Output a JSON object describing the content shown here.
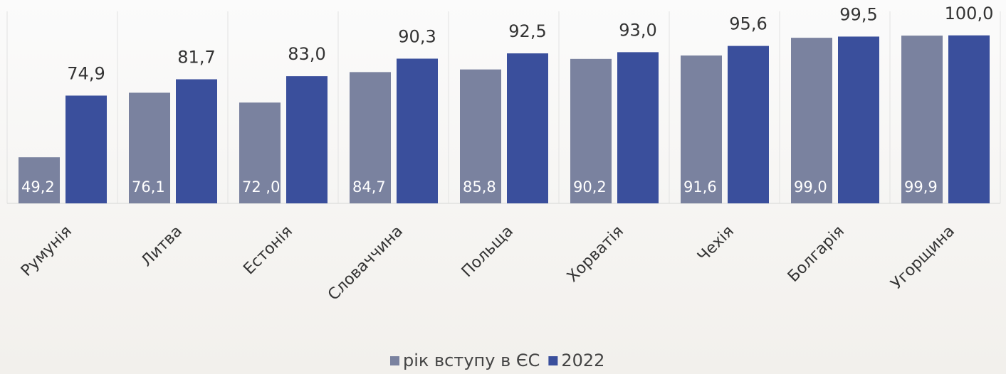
{
  "chart_data": {
    "type": "bar",
    "categories": [
      "Румунія",
      "Литва",
      "Естонія",
      "Словаччина",
      "Польща",
      "Хорватія",
      "Чехія",
      "Болгарія",
      "Угорщина"
    ],
    "series": [
      {
        "name": "рік вступу в ЄС",
        "color": "#7a829f",
        "values": [
          49.2,
          76.1,
          72.0,
          84.7,
          85.8,
          90.2,
          91.6,
          99.0,
          99.9
        ],
        "value_labels": [
          "49,2",
          "76,1",
          "72 ,0",
          "84,7",
          "85,8",
          "90,2",
          "91,6",
          "99,0",
          "99,9"
        ]
      },
      {
        "name": "2022",
        "color": "#3a4f9c",
        "values": [
          74.9,
          81.7,
          83.0,
          90.3,
          92.5,
          93.0,
          95.6,
          99.5,
          100.0
        ],
        "value_labels": [
          "74,9",
          "81,7",
          "83,0",
          "90,3",
          "92,5",
          "93,0",
          "95,6",
          "99,5",
          "100,0"
        ]
      }
    ],
    "ylim": [
      30,
      110
    ],
    "grid": true,
    "legend": "bottom"
  }
}
